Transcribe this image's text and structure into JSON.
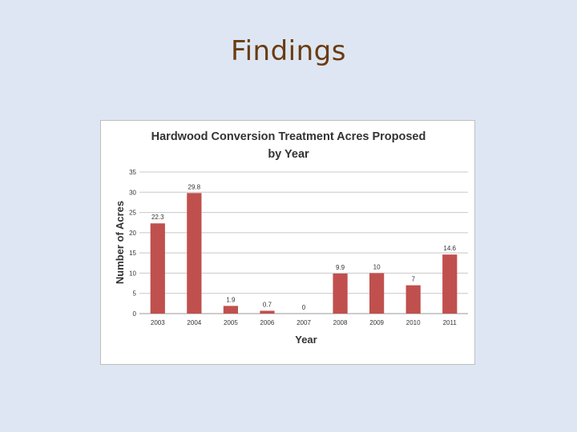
{
  "slide": {
    "title": "Findings"
  },
  "colors": {
    "background": "#dde6f2",
    "title": "#6a3b10",
    "bar": "#c0504d",
    "grid": "#c8c8c8"
  },
  "chart_data": {
    "type": "bar",
    "title_lines": [
      "Hardwood Conversion Treatment Acres Proposed",
      "by Year"
    ],
    "xlabel": "Year",
    "ylabel": "Number of Acres",
    "categories": [
      "2003",
      "2004",
      "2005",
      "2006",
      "2007",
      "2008",
      "2009",
      "2010",
      "2011"
    ],
    "values": [
      22.3,
      29.8,
      1.9,
      0.7,
      0,
      9.9,
      10,
      7,
      14.6
    ],
    "data_labels": [
      "22.3",
      "29.8",
      "1.9",
      "0.7",
      "0",
      "9.9",
      "10",
      "7",
      "14.6"
    ],
    "ylim": [
      0,
      35
    ],
    "yticks": [
      0,
      5,
      10,
      15,
      20,
      25,
      30,
      35
    ],
    "grid": true,
    "legend": "none"
  }
}
